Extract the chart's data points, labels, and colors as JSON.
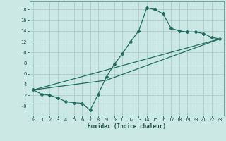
{
  "xlabel": "Humidex (Indice chaleur)",
  "bg_color": "#cce8e4",
  "grid_color": "#aaccc8",
  "line_color": "#1e6e60",
  "xlim": [
    -0.5,
    23.5
  ],
  "ylim": [
    -1.8,
    19.5
  ],
  "xticks": [
    0,
    1,
    2,
    3,
    4,
    5,
    6,
    7,
    8,
    9,
    10,
    11,
    12,
    13,
    14,
    15,
    16,
    17,
    18,
    19,
    20,
    21,
    22,
    23
  ],
  "yticks": [
    0,
    2,
    4,
    6,
    8,
    10,
    12,
    14,
    16,
    18
  ],
  "ytick_labels": [
    "-0",
    "2",
    "4",
    "6",
    "8",
    "10",
    "12",
    "14",
    "16",
    "18"
  ],
  "line1_x": [
    0,
    1,
    2,
    3,
    4,
    5,
    6,
    7,
    8,
    9,
    10,
    11,
    12,
    13,
    14,
    15,
    16,
    17,
    18,
    19,
    20,
    21,
    22,
    23
  ],
  "line1_y": [
    3.0,
    2.2,
    2.0,
    1.5,
    0.8,
    0.6,
    0.5,
    -0.8,
    2.2,
    5.4,
    7.8,
    9.8,
    12.0,
    14.0,
    18.3,
    18.0,
    17.2,
    14.5,
    14.0,
    13.8,
    13.8,
    13.5,
    12.8,
    12.5
  ],
  "line2_x": [
    0,
    23
  ],
  "line2_y": [
    3.0,
    12.5
  ],
  "line3_x": [
    0,
    9,
    23
  ],
  "line3_y": [
    3.0,
    4.8,
    12.5
  ]
}
